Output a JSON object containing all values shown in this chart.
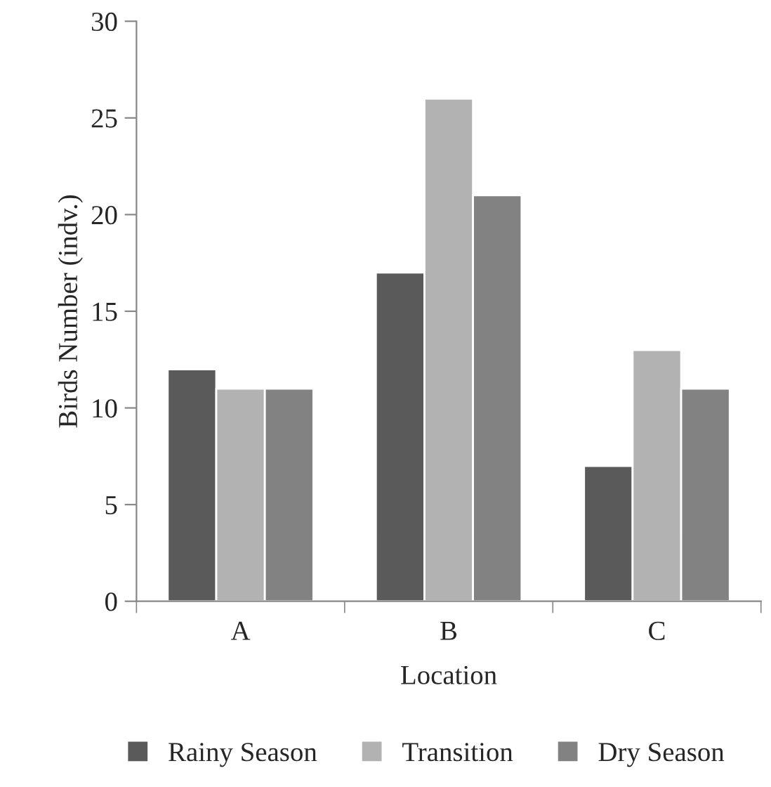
{
  "chart_data": {
    "type": "bar",
    "xlabel": "Location",
    "ylabel": "Birds Number (indv.)",
    "categories": [
      "A",
      "B",
      "C"
    ],
    "series": [
      {
        "name": "Rainy Season",
        "color": "#5a5a5a",
        "values": [
          12,
          17,
          7
        ]
      },
      {
        "name": "Transition",
        "color": "#b2b2b2",
        "values": [
          11,
          26,
          13
        ]
      },
      {
        "name": "Dry Season",
        "color": "#828282",
        "values": [
          11,
          21,
          11
        ]
      }
    ],
    "ylim": [
      0,
      30
    ],
    "yticks": [
      0,
      5,
      10,
      15,
      20,
      25,
      30
    ],
    "grid": false,
    "legend": "bottom"
  }
}
